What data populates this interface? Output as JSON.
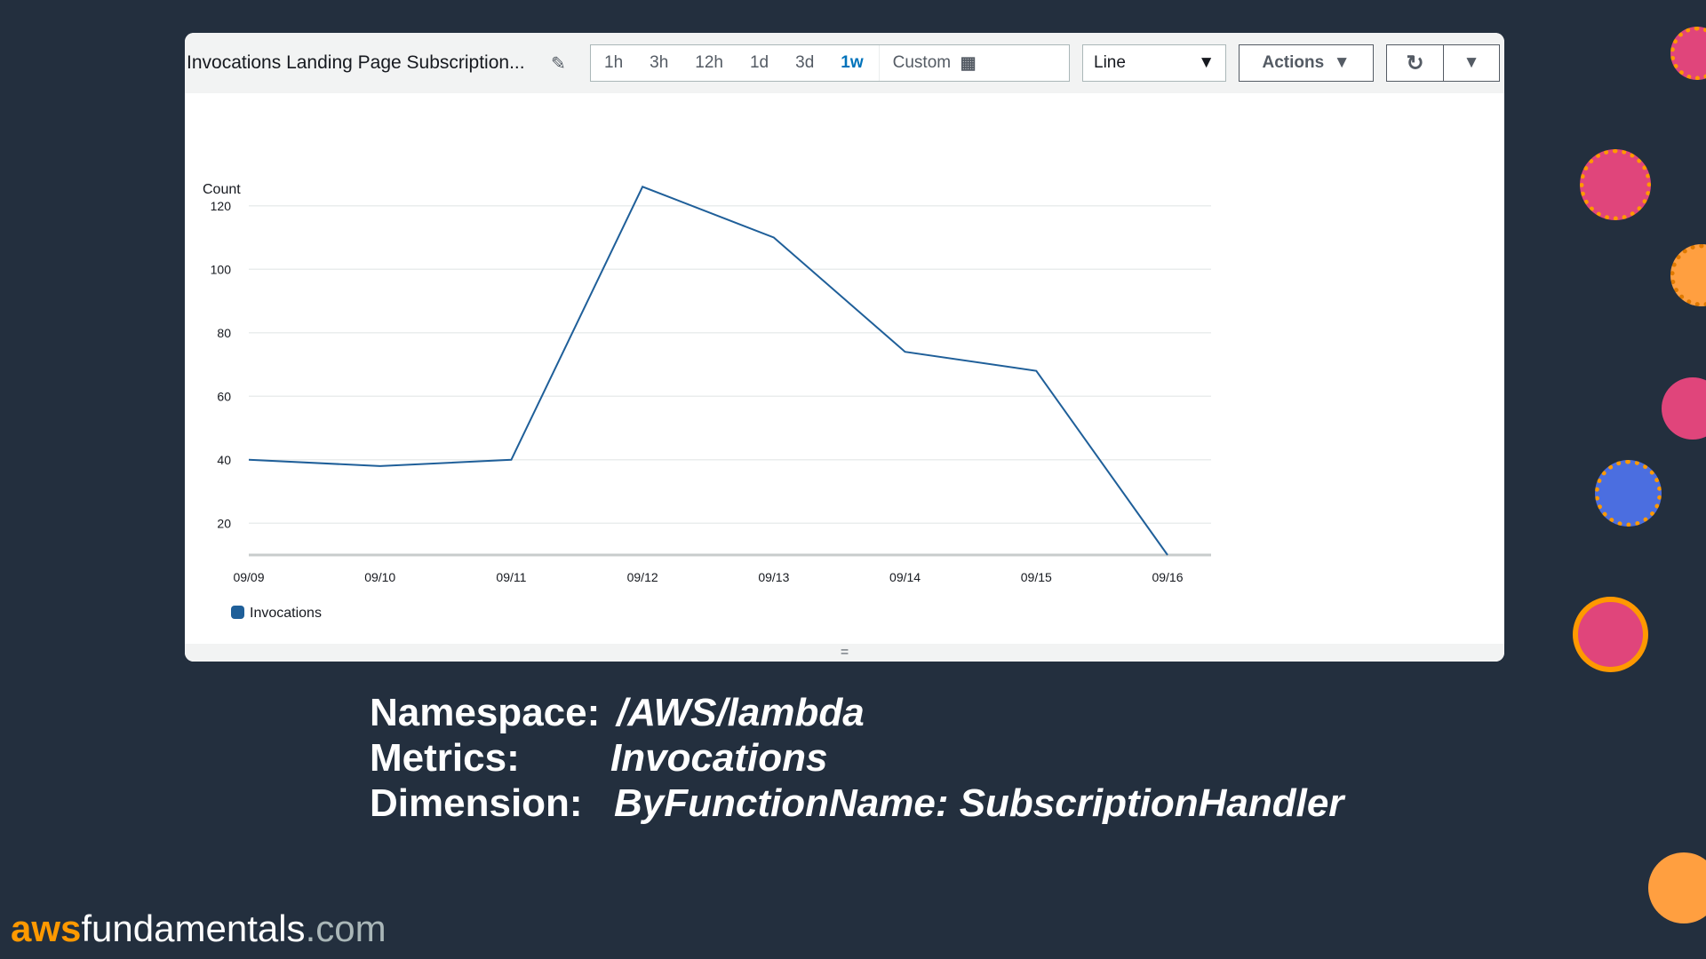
{
  "widget": {
    "title": "Invocations Landing Page Subscription...",
    "ranges": [
      "1h",
      "3h",
      "12h",
      "1d",
      "3d",
      "1w"
    ],
    "selected_range": "1w",
    "custom_label": "Custom",
    "chart_type": "Line",
    "actions_label": "Actions",
    "resize_handle": "="
  },
  "chart_data": {
    "type": "line",
    "ylabel": "Count",
    "categories": [
      "09/09",
      "09/10",
      "09/11",
      "09/12",
      "09/13",
      "09/14",
      "09/15",
      "09/16"
    ],
    "yticks": [
      "120",
      "100",
      "80",
      "60",
      "40",
      "20"
    ],
    "ylim": [
      10,
      130
    ],
    "grid": true,
    "legend": "bottom-left",
    "series": [
      {
        "name": "Invocations",
        "color": "#1f5f99",
        "values": [
          40,
          38,
          40,
          126,
          110,
          74,
          68,
          10
        ]
      }
    ]
  },
  "info": {
    "namespace_label": "Namespace:",
    "namespace": "/AWS/lambda",
    "metrics_label": "Metrics:",
    "metrics": "Invocations",
    "dimension_label": "Dimension:",
    "dimension": "ByFunctionName: SubscriptionHandler"
  },
  "brand": {
    "part1": "aws",
    "part2": "fundamentals",
    "part3": ".com"
  }
}
